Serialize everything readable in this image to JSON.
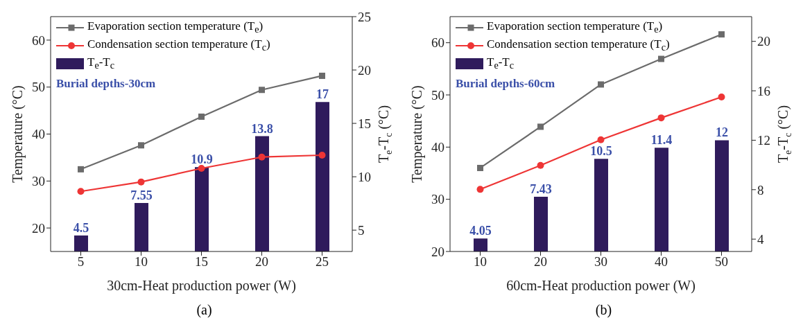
{
  "chart_data": [
    {
      "type": "line",
      "xlabel": "30cm-Heat production power (W)",
      "ylabel": "Temperature (°C)",
      "y2label": "T$_{e}$-T$_{c}$ (°C)",
      "categories": [
        "5",
        "10",
        "15",
        "20",
        "25"
      ],
      "ylim": [
        15,
        65
      ],
      "yticks": [
        20,
        30,
        40,
        50,
        60
      ],
      "y2lim": [
        3,
        25
      ],
      "y2ticks": [
        5,
        10,
        15,
        20,
        25
      ],
      "legend": "top left",
      "annotations": [
        "Burial depths-30cm",
        "(a)"
      ],
      "series": [
        {
          "name": "Evaporation section temperature (T$_{e}$)",
          "marker": "square",
          "color": "#6b6b6b",
          "values": [
            32.5,
            37.6,
            43.7,
            49.4,
            52.4
          ]
        },
        {
          "name": "Condensation section temperature  (T$_{c}$)",
          "marker": "circle",
          "color": "#ee3535",
          "values": [
            27.8,
            29.8,
            32.7,
            35.1,
            35.5
          ]
        },
        {
          "name": "T$_{e}$-T$_{c}$",
          "type": "bar",
          "axis": "y2",
          "color": "#2f1b5c",
          "values": [
            4.5,
            7.55,
            10.9,
            13.8,
            17
          ],
          "value_labels": [
            "4.5",
            "7.55",
            "10.9",
            "13.8",
            "17"
          ]
        }
      ]
    },
    {
      "type": "line",
      "xlabel": "60cm-Heat production power (W)",
      "ylabel": "Temperature (°C)",
      "y2label": "T$_{e}$-T$_{c}$ (°C)",
      "categories": [
        "10",
        "20",
        "30",
        "40",
        "50"
      ],
      "ylim": [
        20,
        65
      ],
      "yticks": [
        20,
        30,
        40,
        50,
        60
      ],
      "y2lim": [
        3,
        22
      ],
      "y2ticks": [
        4,
        8,
        12,
        16,
        20
      ],
      "legend": "top left",
      "annotations": [
        "Burial depths-60cm",
        "(b)"
      ],
      "series": [
        {
          "name": "Evaporation section temperature (T$_{e}$)",
          "marker": "square",
          "color": "#6b6b6b",
          "values": [
            36,
            43.9,
            52,
            56.9,
            61.6
          ]
        },
        {
          "name": "Condensation section temperature  (T$_{c}$)",
          "marker": "circle",
          "color": "#ee3535",
          "values": [
            31.9,
            36.5,
            41.4,
            45.6,
            49.6
          ]
        },
        {
          "name": "T$_{e}$-T$_{c}$",
          "type": "bar",
          "axis": "y2",
          "color": "#2f1b5c",
          "values": [
            4.05,
            7.43,
            10.5,
            11.4,
            12
          ],
          "value_labels": [
            "4.05",
            "7.43",
            "10.5",
            "11.4",
            "12"
          ]
        }
      ]
    }
  ]
}
